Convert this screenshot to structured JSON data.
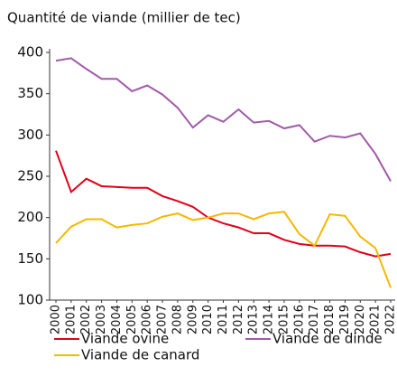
{
  "chart_data": {
    "type": "line",
    "title": "Quantité de viande (millier de tec)",
    "categories": [
      "2000",
      "2001",
      "2002",
      "2003",
      "2004",
      "2005",
      "2006",
      "2007",
      "2008",
      "2009",
      "2010",
      "2011",
      "2012",
      "2013",
      "2014",
      "2015",
      "2016",
      "2017",
      "2018",
      "2019",
      "2020",
      "2021",
      "2022"
    ],
    "series": [
      {
        "name": "Viande ovine",
        "color": "#e2001a",
        "values": [
          281,
          231,
          247,
          238,
          237,
          236,
          236,
          226,
          220,
          213,
          200,
          193,
          188,
          181,
          181,
          173,
          168,
          166,
          166,
          165,
          158,
          153,
          156
        ]
      },
      {
        "name": "Viande de dinde",
        "color": "#a05ba8",
        "values": [
          390,
          393,
          380,
          368,
          368,
          353,
          360,
          349,
          333,
          309,
          324,
          316,
          331,
          315,
          317,
          308,
          312,
          292,
          299,
          297,
          302,
          277,
          244
        ]
      },
      {
        "name": "Viande de canard",
        "color": "#f5b800",
        "values": [
          169,
          189,
          198,
          198,
          188,
          191,
          193,
          201,
          205,
          197,
          200,
          205,
          205,
          198,
          205,
          207,
          180,
          166,
          204,
          202,
          177,
          163,
          115
        ]
      }
    ],
    "ylim": [
      100,
      400
    ],
    "yticks": [
      100,
      150,
      200,
      250,
      300,
      350,
      400
    ]
  }
}
